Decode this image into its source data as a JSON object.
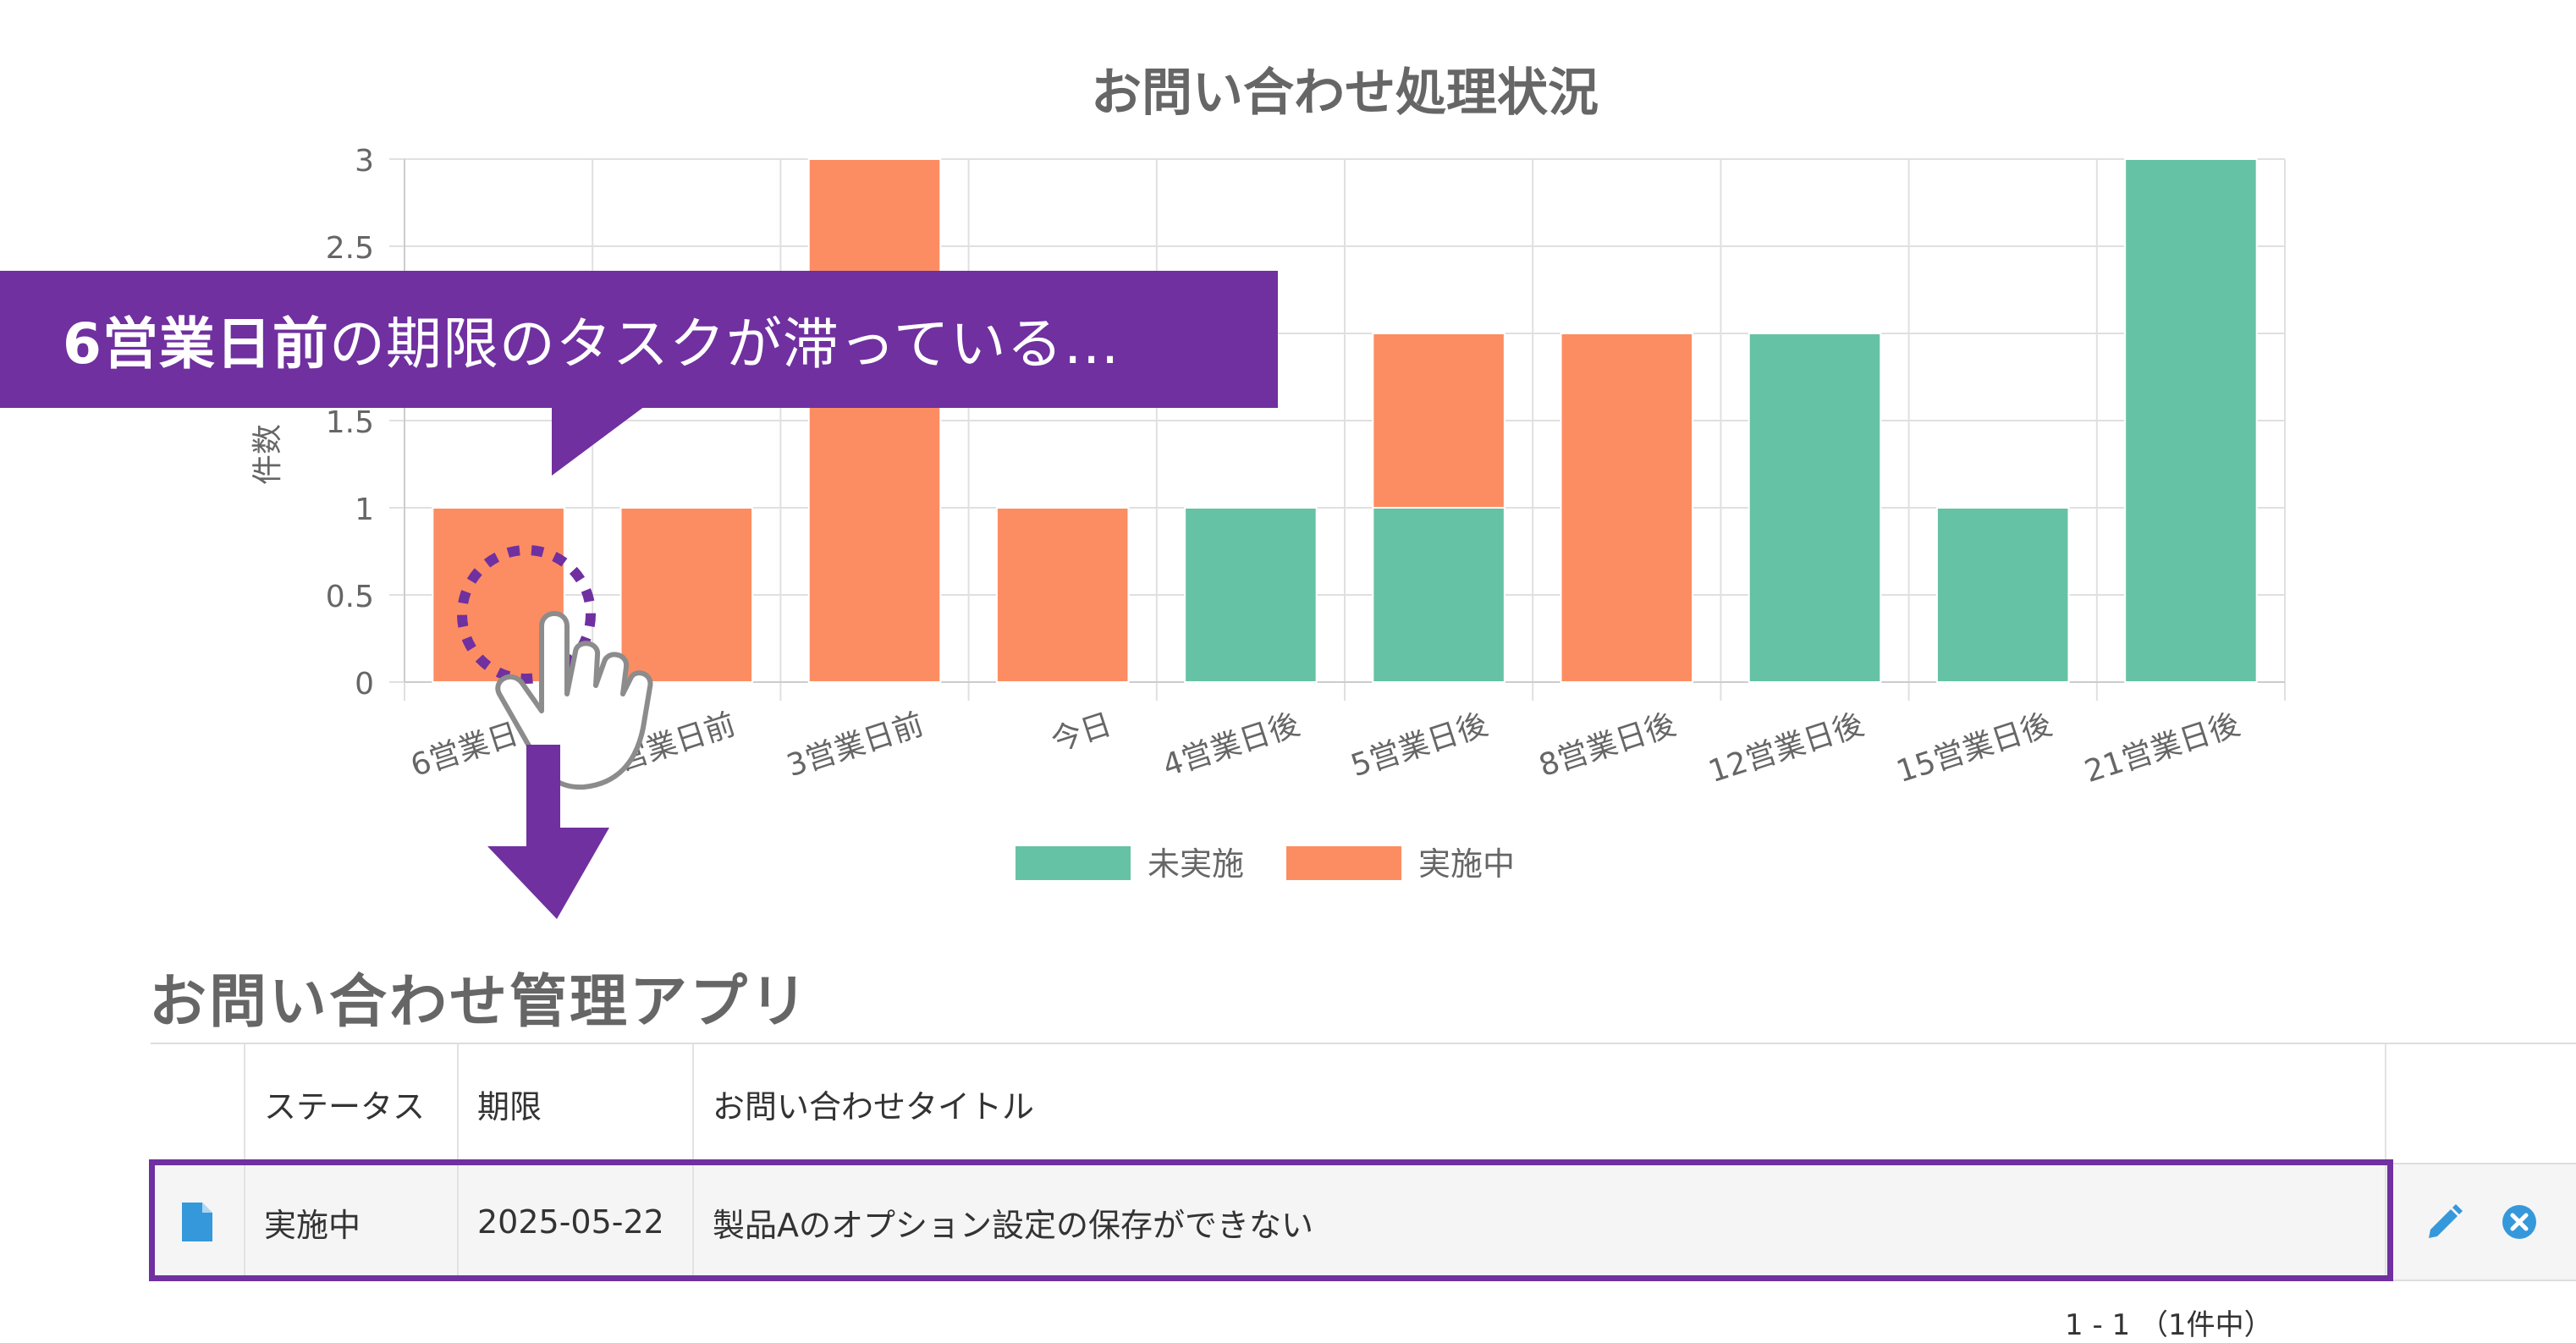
{
  "chart_data": {
    "type": "bar",
    "stacked": true,
    "title": "お問い合わせ処理状況",
    "ylabel": "件数",
    "ylim": [
      0,
      3
    ],
    "y_ticks": [
      "0",
      "0.5",
      "1",
      "1.5",
      "2",
      "2.5",
      "3"
    ],
    "grid": true,
    "legend_position": "bottom",
    "categories": [
      "6営業日前",
      "4営業日前",
      "3営業日前",
      "今日",
      "4営業日後",
      "5営業日後",
      "8営業日後",
      "12営業日後",
      "15営業日後",
      "21営業日後"
    ],
    "series": [
      {
        "name": "未実施",
        "color": "#66c2a5",
        "values": [
          0,
          0,
          0,
          0,
          1,
          1,
          0,
          2,
          1,
          3
        ]
      },
      {
        "name": "実施中",
        "color": "#fc8d62",
        "values": [
          1,
          1,
          3,
          1,
          0,
          1,
          2,
          0,
          0,
          0
        ]
      }
    ]
  },
  "callout": {
    "highlight": "6営業日前",
    "text": "の期限のタスクが滞っている…",
    "color": "#7030a0"
  },
  "app": {
    "title": "お問い合わせ管理アプリ",
    "columns": [
      "",
      "ステータス",
      "期限",
      "お問い合わせタイトル",
      ""
    ],
    "rows": [
      {
        "icon": "document-icon",
        "status": "実施中",
        "deadline": "2025-05-22",
        "title": "製品Aのオプション設定の保存ができない"
      }
    ],
    "pagination": "1 - 1 （1件中）"
  },
  "colors": {
    "accent": "#7030a0",
    "icon_blue": "#3498db"
  }
}
